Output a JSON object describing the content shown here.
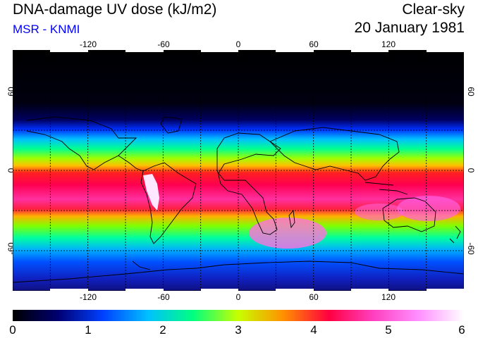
{
  "header": {
    "title": "DNA-damage UV dose (kJ/m2)",
    "source": "MSR - KNMI",
    "sky_condition": "Clear-sky",
    "date": "20 January 1981"
  },
  "map": {
    "projection": "equirectangular",
    "lon_range": [
      -180,
      180
    ],
    "lat_range": [
      -90,
      90
    ],
    "lon_ticks": [
      "-120",
      "-60",
      "0",
      "60",
      "120"
    ],
    "lat_ticks": [
      "60",
      "0",
      "-60"
    ],
    "grid": "dashed every 30 degrees"
  },
  "colorbar": {
    "min": 0,
    "max": 6,
    "labels": [
      "0",
      "1",
      "2",
      "3",
      "4",
      "5",
      "6"
    ],
    "colors": [
      "#000000",
      "#000070",
      "#0040ff",
      "#00c0ff",
      "#00ff80",
      "#c8ff00",
      "#ff9000",
      "#ff0040",
      "#ff40c0",
      "#ff90ff",
      "#ffffff"
    ]
  },
  "colors": {
    "subtitle": "#0000ff"
  }
}
